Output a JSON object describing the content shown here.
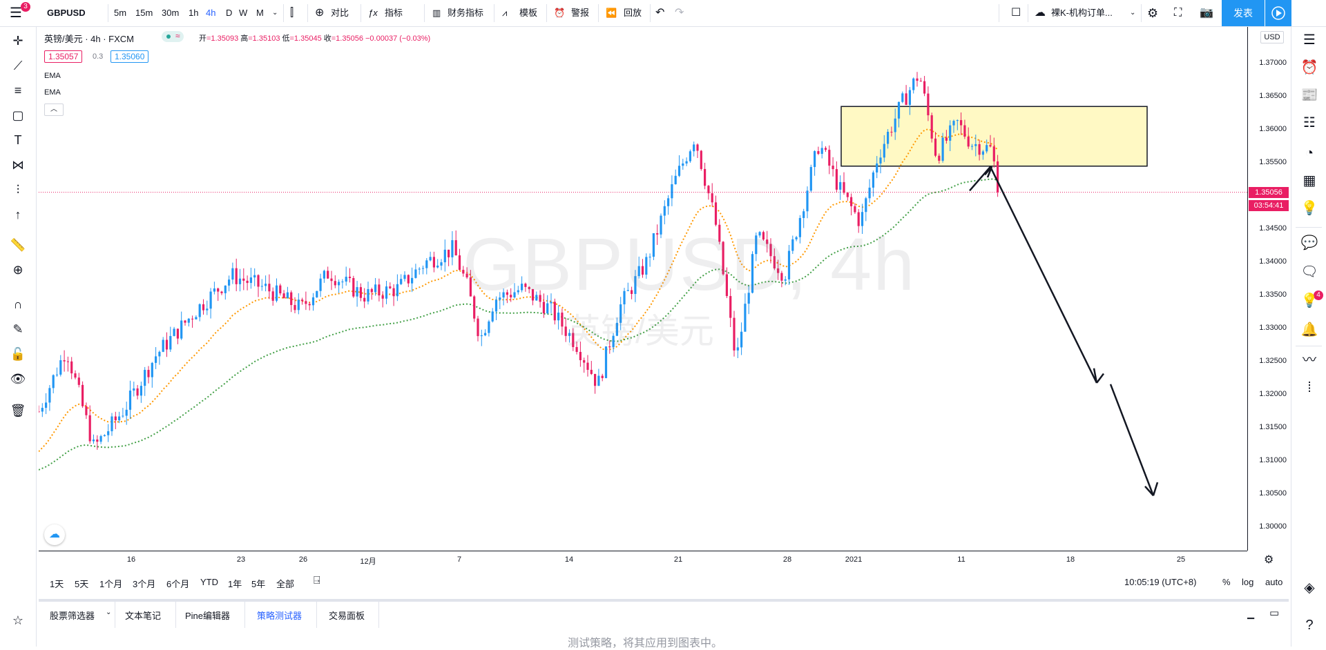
{
  "toolbar": {
    "symbol": "GBPUSD",
    "intervals": [
      "5m",
      "15m",
      "30m",
      "1h",
      "4h",
      "D",
      "W",
      "M"
    ],
    "active_interval": "4h",
    "compare": "对比",
    "indicators": "指标",
    "financials": "财务指标",
    "templates": "模板",
    "alert": "警报",
    "replay": "回放",
    "layout_name": "裸K-机构订单...",
    "publish": "发表",
    "menu_badge": "3"
  },
  "legend": {
    "title": "英镑/美元 · 4h · FXCM",
    "open_label": "开",
    "open": "=1.35093",
    "high_label": "高",
    "high": "=1.35103",
    "low_label": "低",
    "low": "=1.35045",
    "close_label": "收",
    "close": "=1.35056",
    "change": "−0.00037 (−0.03%)",
    "bid": "1.35057",
    "spread": "0.3",
    "ask": "1.35060",
    "ema1": "EMA",
    "ema2": "EMA"
  },
  "watermark": {
    "symbol_interval": "GBPUSD, 4h",
    "description": "英镑/美元"
  },
  "price_axis": {
    "currency": "USD",
    "ticks": [
      "1.37000",
      "1.36500",
      "1.36000",
      "1.35500",
      "1.35000",
      "1.34500",
      "1.34000",
      "1.33500",
      "1.33000",
      "1.32500",
      "1.32000",
      "1.31500",
      "1.31000",
      "1.30500",
      "1.30000"
    ],
    "last_price": "1.35056",
    "countdown": "03:54:41"
  },
  "time_axis": {
    "ticks": [
      "16",
      "23",
      "26",
      "12月",
      "7",
      "14",
      "21",
      "28",
      "2021",
      "11",
      "18",
      "25"
    ]
  },
  "range_bar": {
    "ranges": [
      "1天",
      "5天",
      "1个月",
      "3个月",
      "6个月",
      "YTD",
      "1年",
      "5年",
      "全部"
    ],
    "clock": "10:05:19 (UTC+8)",
    "percent": "%",
    "log": "log",
    "auto": "auto"
  },
  "bottom_tabs": {
    "tabs": [
      "股票筛选器",
      "文本笔记",
      "Pine编辑器",
      "策略测试器",
      "交易面板"
    ],
    "active": "策略测试器",
    "panel_text": "测试策略，将其应用到图表中。"
  },
  "right_badge": "4",
  "colors": {
    "up": "#2196f3",
    "down": "#e91e63",
    "ema_fast": "#ff9800",
    "ema_slow": "#43a047",
    "zone_fill": "#fff9c4",
    "accent": "#2962ff"
  },
  "chart_data": {
    "type": "candlestick",
    "symbol": "GBPUSD",
    "interval": "4h",
    "ylim": [
      1.2965,
      1.3755
    ],
    "last_close": 1.35056,
    "annotations": [
      "rectangle zone 1.3545-1.3635",
      "arrow up then down projection toward 1.3045"
    ]
  }
}
